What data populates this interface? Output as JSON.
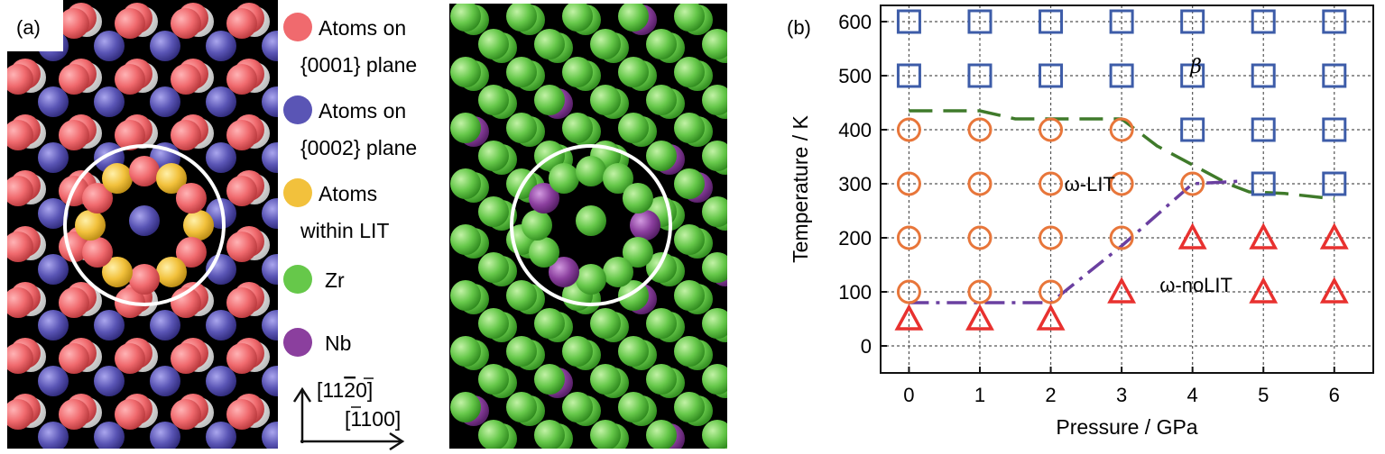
{
  "panel_a": {
    "label": "(a)",
    "legend": [
      {
        "line1": "Atoms on",
        "line2": "{0001} plane",
        "color": "#f06a6e"
      },
      {
        "line1": "Atoms on",
        "line2": "{0002} plane",
        "color": "#5a55b5"
      },
      {
        "line1": "Atoms",
        "line2": "within LIT",
        "color": "#f2c13c"
      },
      {
        "line1": "Zr",
        "line2": "",
        "color": "#66c84a"
      },
      {
        "line1": "Nb",
        "line2": "",
        "color": "#8b3f9e"
      }
    ],
    "direction_up": "[11ă2̃0]",
    "direction_up_parts": {
      "pre": "[11",
      "bar": "2",
      "post": "0]"
    },
    "direction_right_parts": {
      "pre": "[",
      "bar": "1",
      "post": "100]"
    }
  },
  "panel_b": {
    "label": "(b)",
    "region_labels": {
      "beta": "β",
      "omega_lit": "ω-LIT",
      "omega_nolit": "ω-noLIT"
    }
  },
  "chart_data": {
    "type": "scatter",
    "xlabel": "Pressure / GPa",
    "ylabel": "Temperature / K",
    "xlim": [
      -0.4,
      6.55
    ],
    "ylim": [
      -50,
      630
    ],
    "xticks": [
      0,
      1,
      2,
      3,
      4,
      5,
      6
    ],
    "yticks": [
      0,
      100,
      200,
      300,
      400,
      500,
      600
    ],
    "grid": true,
    "series": [
      {
        "marker": "square",
        "color": "#3d5ca8",
        "points": [
          [
            0,
            600
          ],
          [
            1,
            600
          ],
          [
            2,
            600
          ],
          [
            3,
            600
          ],
          [
            4,
            600
          ],
          [
            5,
            600
          ],
          [
            6,
            600
          ],
          [
            0,
            500
          ],
          [
            1,
            500
          ],
          [
            2,
            500
          ],
          [
            3,
            500
          ],
          [
            4,
            500
          ],
          [
            5,
            500
          ],
          [
            6,
            500
          ],
          [
            4,
            400
          ],
          [
            5,
            400
          ],
          [
            6,
            400
          ],
          [
            5,
            300
          ],
          [
            6,
            300
          ]
        ]
      },
      {
        "marker": "circle",
        "color": "#e8763a",
        "points": [
          [
            0,
            400
          ],
          [
            1,
            400
          ],
          [
            2,
            400
          ],
          [
            3,
            400
          ],
          [
            0,
            300
          ],
          [
            1,
            300
          ],
          [
            2,
            300
          ],
          [
            3,
            300
          ],
          [
            4,
            300
          ],
          [
            0,
            200
          ],
          [
            1,
            200
          ],
          [
            2,
            200
          ],
          [
            3,
            200
          ],
          [
            0,
            100
          ],
          [
            1,
            100
          ],
          [
            2,
            100
          ]
        ]
      },
      {
        "marker": "triangle",
        "color": "#e8312f",
        "points": [
          [
            4,
            200
          ],
          [
            5,
            200
          ],
          [
            6,
            200
          ],
          [
            3,
            100
          ],
          [
            5,
            100
          ],
          [
            6,
            100
          ],
          [
            0,
            50
          ],
          [
            1,
            50
          ],
          [
            2,
            50
          ]
        ]
      }
    ],
    "boundaries": [
      {
        "style": "dashed",
        "color": "#3f7a2a",
        "points": [
          [
            0,
            435
          ],
          [
            1,
            435
          ],
          [
            1.5,
            420
          ],
          [
            2,
            420
          ],
          [
            3,
            420
          ],
          [
            3.5,
            370
          ],
          [
            4,
            335
          ],
          [
            4.5,
            300
          ],
          [
            4.8,
            285
          ],
          [
            5.3,
            282
          ],
          [
            6,
            272
          ]
        ]
      },
      {
        "style": "dashdot",
        "color": "#6a3fa0",
        "points": [
          [
            0,
            80
          ],
          [
            2,
            80
          ],
          [
            3,
            185
          ],
          [
            4,
            300
          ],
          [
            4.7,
            305
          ]
        ]
      }
    ]
  }
}
